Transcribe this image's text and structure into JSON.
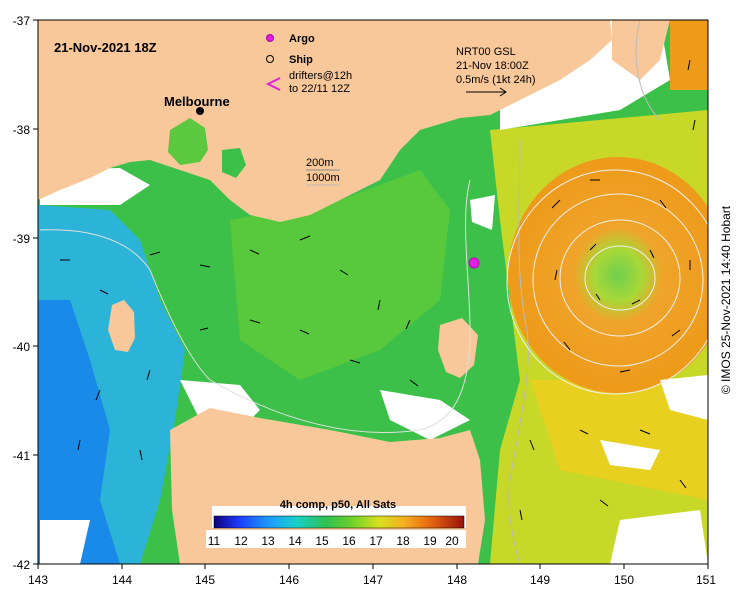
{
  "title": "21-Nov-2021 18Z",
  "legend": {
    "argo": "Argo",
    "ship": "Ship",
    "drifters_line1": "drifters@12h",
    "drifters_line2": "to 22/11 12Z"
  },
  "city": "Melbourne",
  "velocity_key": {
    "line1": "NRT00 GSL",
    "line2": "21-Nov 18:00Z",
    "line3": "0.5m/s (1kt 24h)"
  },
  "isobaths": {
    "a": "200m",
    "b": "1000m"
  },
  "colorbar": {
    "title": "4h comp, p50, All Sats",
    "ticks": [
      "11",
      "12",
      "13",
      "14",
      "15",
      "16",
      "17",
      "18",
      "19",
      "20"
    ]
  },
  "axes": {
    "x_ticks": [
      "143",
      "144",
      "145",
      "146",
      "147",
      "148",
      "149",
      "150",
      "151"
    ],
    "y_ticks": [
      "-37",
      "-38",
      "-39",
      "-40",
      "-41",
      "-42"
    ]
  },
  "credit": "© IMOS 25-Nov-2021 14:40 Hobart",
  "colors": {
    "land": "#f8c89a",
    "ocean_green": "#3cc04a",
    "eddy_orange": "#ee9a1a",
    "argo": "#e020e0"
  }
}
